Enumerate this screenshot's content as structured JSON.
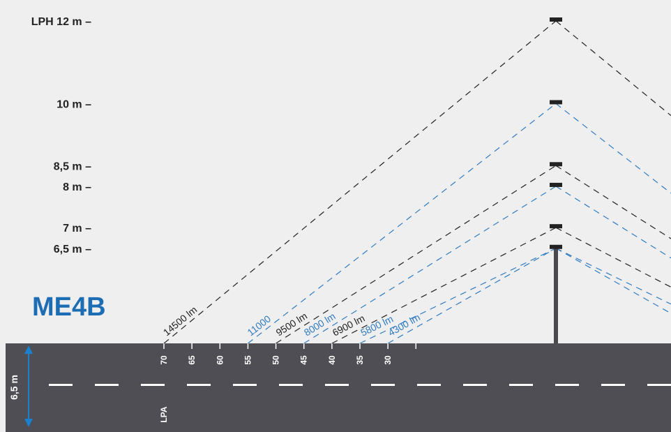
{
  "title": "ME4B",
  "colors": {
    "background": "#efefef",
    "road": "#4f4e54",
    "dark": "#222222",
    "blue": "#2f7bc2",
    "title": "#1c6db4",
    "arrow": "#1a80cf",
    "pole": "#4a4a4e",
    "white": "#ffffff"
  },
  "heights": [
    {
      "label": "LPH 12 m –",
      "value_m": 12
    },
    {
      "label": "10 m –",
      "value_m": 10
    },
    {
      "label": "8,5 m –",
      "value_m": 8.5
    },
    {
      "label": "8 m –",
      "value_m": 8
    },
    {
      "label": "7 m –",
      "value_m": 7
    },
    {
      "label": "6,5 m –",
      "value_m": 6.5
    }
  ],
  "lpa": {
    "label": "LPA",
    "ticks": [
      "70",
      "65",
      "60",
      "55",
      "50",
      "45",
      "40",
      "35",
      "30"
    ]
  },
  "road_width_label": "6,5 m",
  "configurations": [
    {
      "height_m": 12,
      "spacing_m": 70,
      "lumen_label": "14500 lm",
      "color": "dark"
    },
    {
      "height_m": 10,
      "spacing_m": 55,
      "lumen_label": "11000",
      "color": "blue"
    },
    {
      "height_m": 8.5,
      "spacing_m": 50,
      "lumen_label": "9500 lm",
      "color": "dark"
    },
    {
      "height_m": 8,
      "spacing_m": 45,
      "lumen_label": "8000 lm",
      "color": "blue"
    },
    {
      "height_m": 7,
      "spacing_m": 40,
      "lumen_label": "6900 lm",
      "color": "dark"
    },
    {
      "height_m": 6.5,
      "spacing_m": 35,
      "lumen_label": "5800 lm",
      "color": "blue"
    },
    {
      "height_m": 6.5,
      "spacing_m": 30,
      "lumen_label": "4300 lm",
      "color": "blue"
    }
  ]
}
